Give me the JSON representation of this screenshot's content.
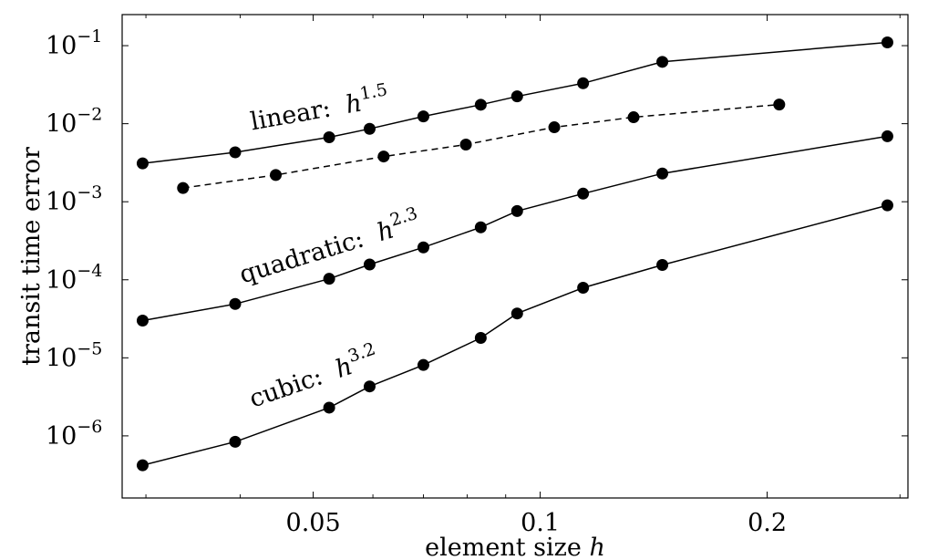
{
  "chart_data": {
    "type": "line",
    "x_scale": "log",
    "y_scale": "log",
    "grid": false,
    "xlabel": "element size",
    "xlabel_var": "h",
    "ylabel": "transit time error",
    "x_ticks": [
      {
        "value": 0.05,
        "label": "0.05"
      },
      {
        "value": 0.1,
        "label": "0.1"
      },
      {
        "value": 0.2,
        "label": "0.2"
      }
    ],
    "y_ticks": [
      {
        "value": 1e-06,
        "base": "10",
        "exp": "−6"
      },
      {
        "value": 1e-05,
        "base": "10",
        "exp": "−5"
      },
      {
        "value": 0.0001,
        "base": "10",
        "exp": "−4"
      },
      {
        "value": 0.001,
        "base": "10",
        "exp": "−3"
      },
      {
        "value": 0.01,
        "base": "10",
        "exp": "−2"
      },
      {
        "value": 0.1,
        "base": "10",
        "exp": "−1"
      }
    ],
    "xlim": [
      0.0279,
      0.3074
    ],
    "ylim": [
      1.6e-07,
      0.25
    ],
    "series": [
      {
        "id": "linear",
        "style": "solid",
        "color": "#000000",
        "x": [
          0.0297,
          0.0394,
          0.0525,
          0.0594,
          0.07,
          0.0834,
          0.0932,
          0.114,
          0.1452,
          0.2887
        ],
        "y": [
          0.0031,
          0.0043,
          0.0067,
          0.0086,
          0.0124,
          0.0175,
          0.0224,
          0.033,
          0.062,
          0.11
        ]
      },
      {
        "id": "intermediate",
        "style": "dashed",
        "color": "#000000",
        "x": [
          0.0336,
          0.0446,
          0.062,
          0.0797,
          0.1044,
          0.133,
          0.2075
        ],
        "y": [
          0.0015,
          0.0022,
          0.0038,
          0.0054,
          0.009,
          0.0121,
          0.0176
        ]
      },
      {
        "id": "quadratic",
        "style": "solid",
        "color": "#000000",
        "x": [
          0.0297,
          0.0394,
          0.0525,
          0.0594,
          0.07,
          0.0834,
          0.0932,
          0.114,
          0.1452,
          0.2887
        ],
        "y": [
          3e-05,
          4.9e-05,
          0.000103,
          0.000157,
          0.00026,
          0.00047,
          0.00076,
          0.00127,
          0.0023,
          0.0069
        ]
      },
      {
        "id": "cubic",
        "style": "solid",
        "color": "#000000",
        "x": [
          0.0297,
          0.0394,
          0.0525,
          0.0594,
          0.07,
          0.0834,
          0.0932,
          0.114,
          0.1452,
          0.2887
        ],
        "y": [
          4.2e-07,
          8.4e-07,
          2.3e-06,
          4.3e-06,
          8.1e-06,
          1.8e-05,
          3.7e-05,
          7.9e-05,
          0.000155,
          0.0009
        ]
      }
    ],
    "annotations": [
      {
        "id": "linear",
        "text": "linear: ",
        "var": "h",
        "exp": "1.5",
        "at_x": 0.0415,
        "at_y": 0.0083,
        "rotate": -10
      },
      {
        "id": "quadratic",
        "text": "quadratic: ",
        "var": "h",
        "exp": "2.3",
        "at_x": 0.0403,
        "at_y": 9e-05,
        "rotate": -17
      },
      {
        "id": "cubic",
        "text": "cubic: ",
        "var": "h",
        "exp": "3.2",
        "at_x": 0.0416,
        "at_y": 2.3e-06,
        "rotate": -19
      }
    ]
  }
}
